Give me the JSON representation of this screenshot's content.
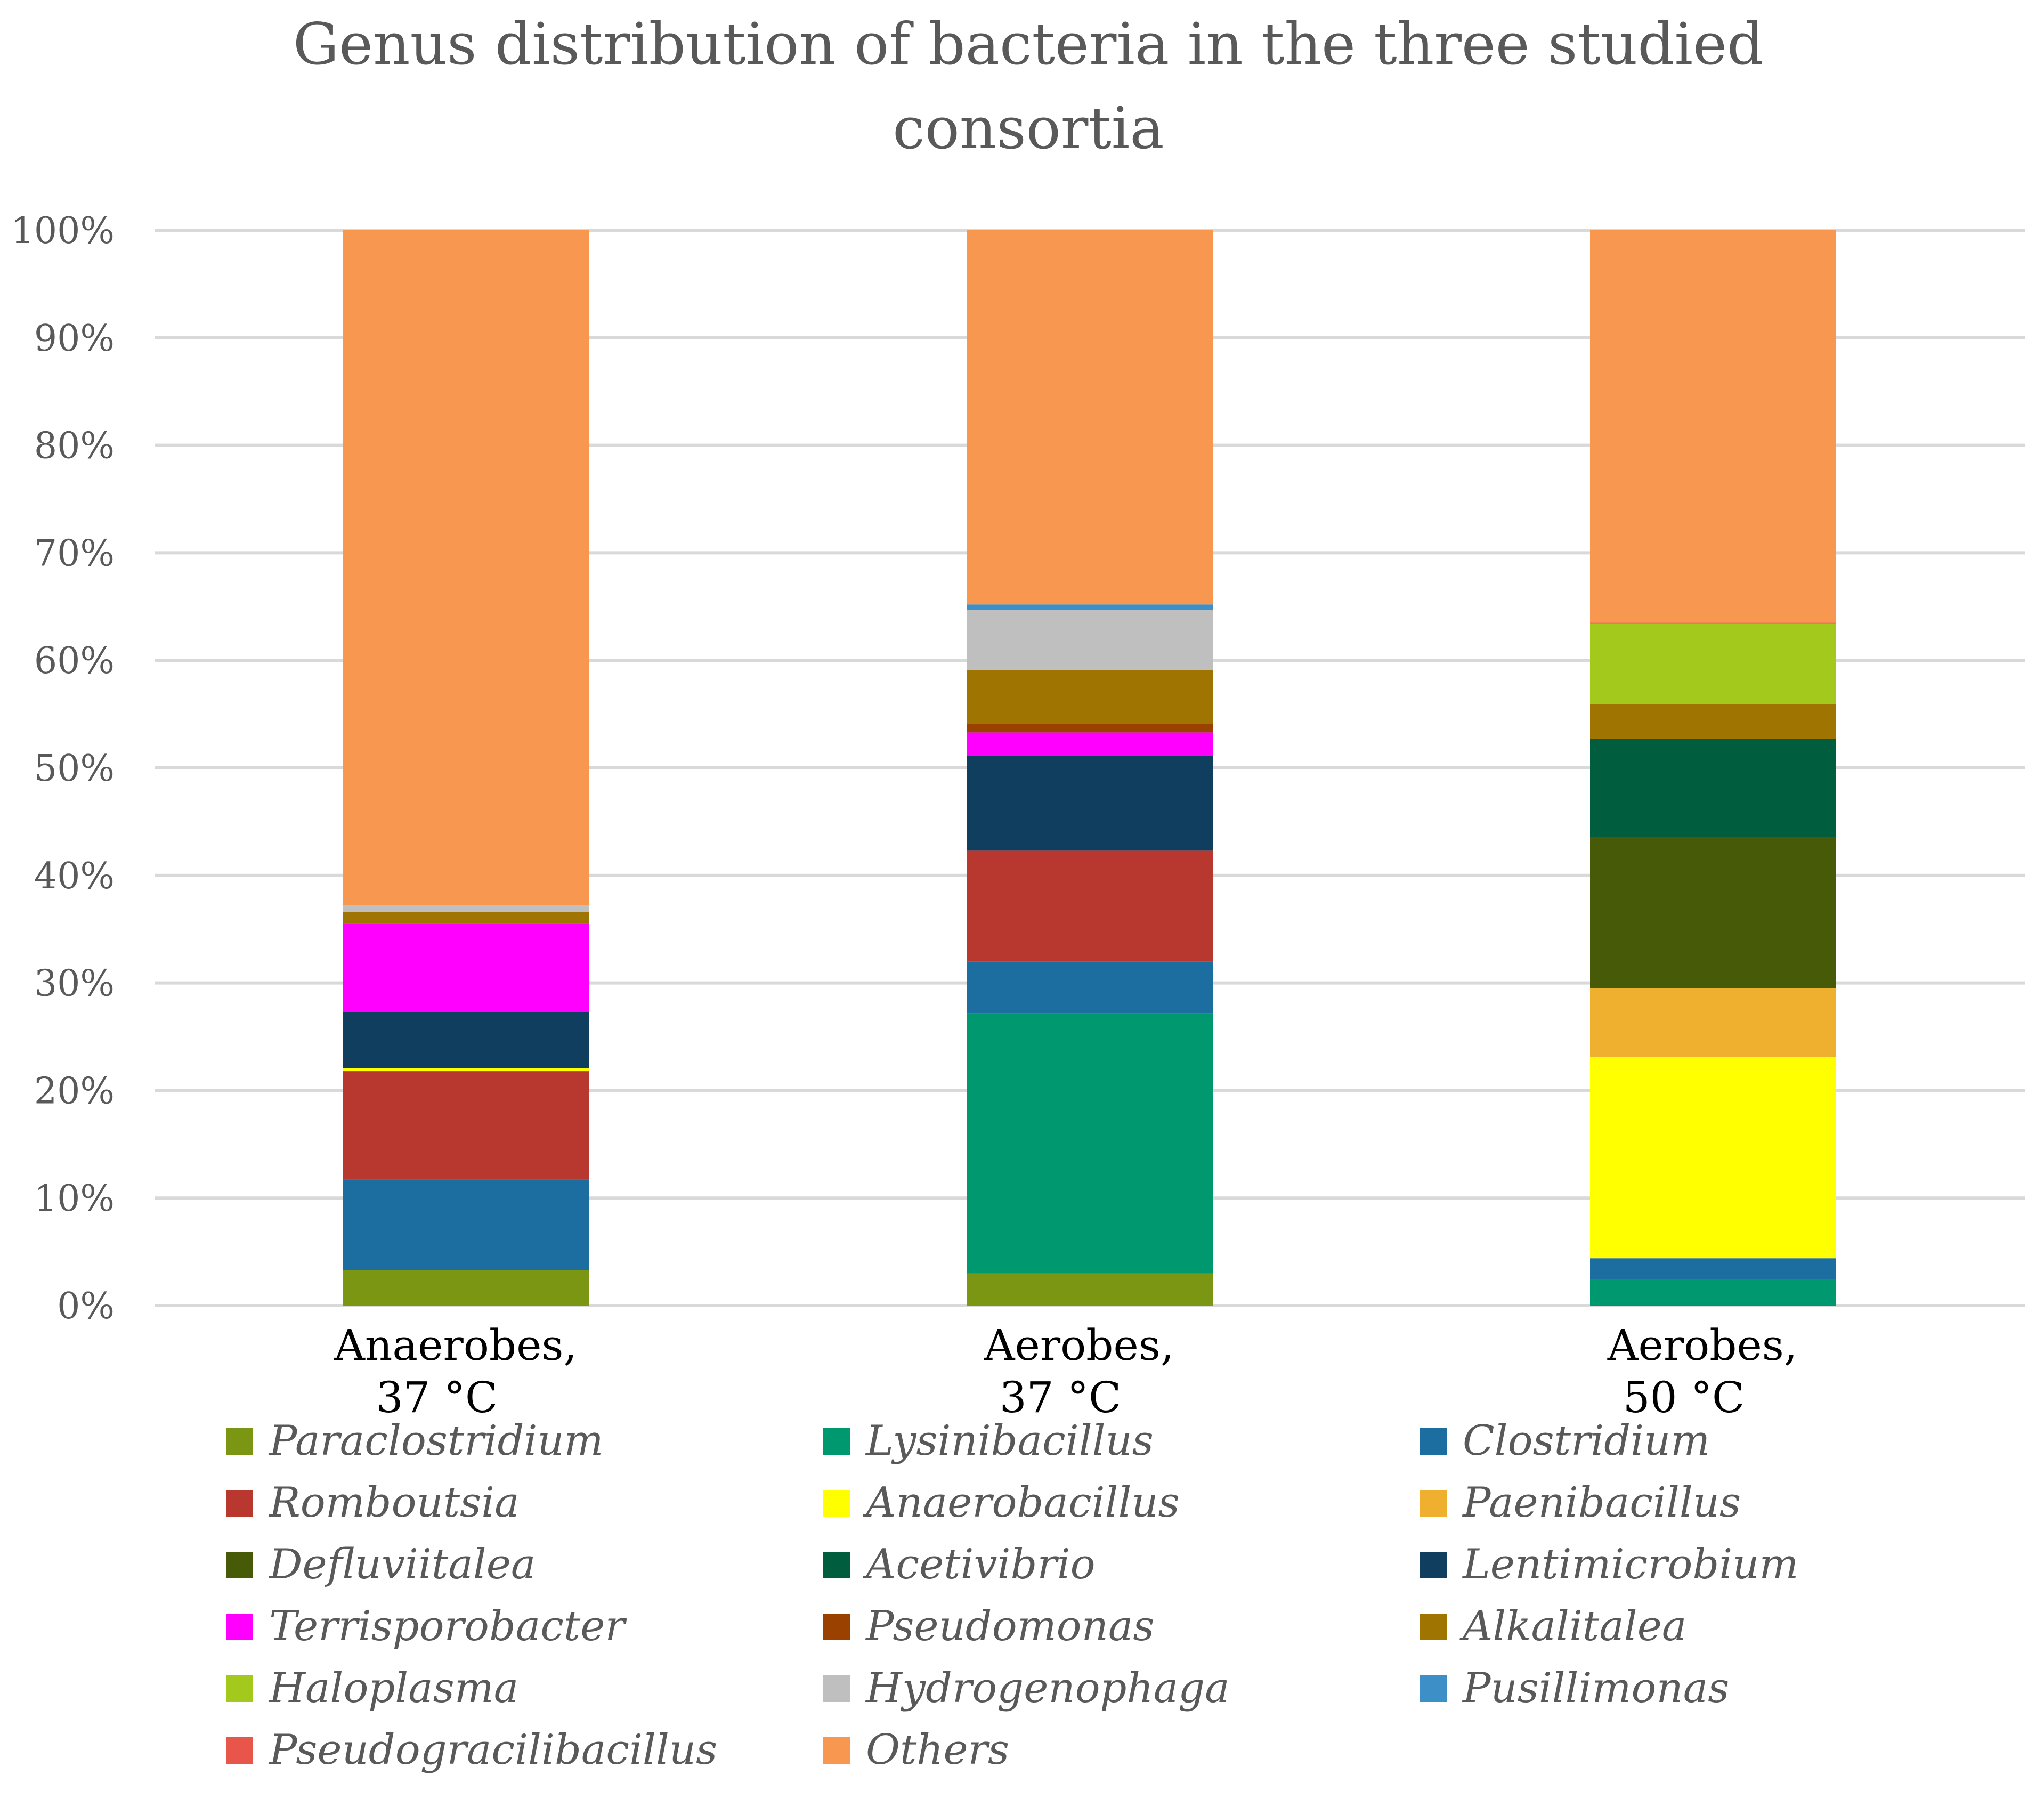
{
  "chart_data": {
    "type": "bar",
    "stacked": true,
    "title_lines": [
      "Genus distribution of bacteria in the three studied",
      "consortia"
    ],
    "categories": [
      [
        "Anaerobes,",
        "37 °C"
      ],
      [
        "Aerobes,",
        "37 °C"
      ],
      [
        "Aerobes,",
        "50 °C"
      ]
    ],
    "y_ticks": [
      "0%",
      "10%",
      "20%",
      "30%",
      "40%",
      "50%",
      "60%",
      "70%",
      "80%",
      "90%",
      "100%"
    ],
    "ylim": [
      0,
      100
    ],
    "grid": true,
    "legend_position": "bottom",
    "series": [
      {
        "name": "Paraclostridium",
        "color": "#7a9612",
        "values": [
          3.3,
          3.0,
          0.0
        ]
      },
      {
        "name": "Lysinibacillus",
        "color": "#00996f",
        "values": [
          0.0,
          24.2,
          2.4
        ]
      },
      {
        "name": "Clostridium",
        "color": "#1c6ea0",
        "values": [
          8.4,
          4.8,
          2.0
        ]
      },
      {
        "name": "Romboutsia",
        "color": "#b8372f",
        "values": [
          10.1,
          10.3,
          0.0
        ]
      },
      {
        "name": "Anaerobacillus",
        "color": "#ffff00",
        "values": [
          0.3,
          0.0,
          18.7
        ]
      },
      {
        "name": "Paenibacillus",
        "color": "#efb030",
        "values": [
          0.0,
          0.0,
          6.4
        ]
      },
      {
        "name": "Defluviitalea",
        "color": "#475a08",
        "values": [
          0.0,
          0.0,
          14.1
        ]
      },
      {
        "name": "Acetivibrio",
        "color": "#005e3e",
        "values": [
          0.0,
          0.0,
          9.1
        ]
      },
      {
        "name": "Lentimicrobium",
        "color": "#0f3e5f",
        "values": [
          5.2,
          8.8,
          0.0
        ]
      },
      {
        "name": "Terrisporobacter",
        "color": "#ff00ff",
        "values": [
          8.2,
          2.2,
          0.0
        ]
      },
      {
        "name": "Pseudomonas",
        "color": "#9a4100",
        "values": [
          0.0,
          0.8,
          0.0
        ]
      },
      {
        "name": "Alkalitalea",
        "color": "#a07400",
        "values": [
          1.1,
          5.0,
          3.2
        ]
      },
      {
        "name": "Haloplasma",
        "color": "#a2c91c",
        "values": [
          0.0,
          0.0,
          7.5
        ]
      },
      {
        "name": "Hydrogenophaga",
        "color": "#bfbfbf",
        "values": [
          0.6,
          5.6,
          0.0
        ]
      },
      {
        "name": "Pusillimonas",
        "color": "#3c8fc7",
        "values": [
          0.0,
          0.5,
          0.0
        ]
      },
      {
        "name": "Pseudogracilibacillus",
        "color": "#e8554a",
        "values": [
          0.0,
          0.0,
          0.1
        ]
      },
      {
        "name": "Others",
        "color": "#f79750",
        "values": [
          62.8,
          34.8,
          36.5
        ]
      }
    ]
  }
}
